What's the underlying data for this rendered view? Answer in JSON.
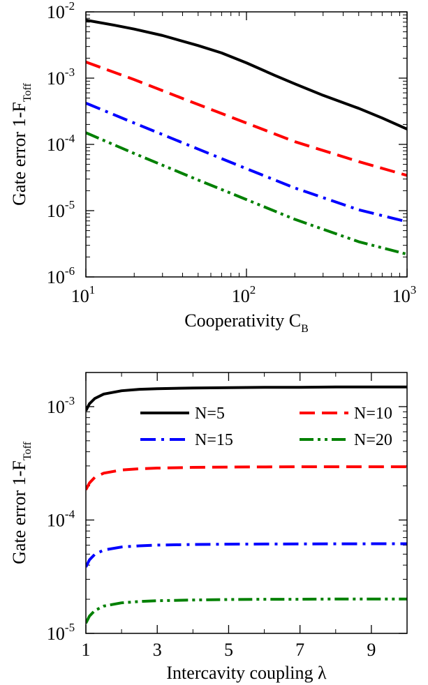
{
  "chart_data": [
    {
      "type": "line",
      "xlabel": "Cooperativity C",
      "xlabel_sub": "B",
      "ylabel": "Gate error 1-F",
      "ylabel_sub": "Toff",
      "xscale": "log",
      "yscale": "log",
      "xlim": [
        10,
        1000
      ],
      "ylim": [
        1e-06,
        0.01
      ],
      "x_ticks": [
        {
          "base": "10",
          "exp": "1",
          "value": 10
        },
        {
          "base": "10",
          "exp": "2",
          "value": 100
        },
        {
          "base": "10",
          "exp": "3",
          "value": 1000
        }
      ],
      "y_ticks": [
        {
          "base": "10",
          "exp": "-6",
          "value": 1e-06
        },
        {
          "base": "10",
          "exp": "-5",
          "value": 1e-05
        },
        {
          "base": "10",
          "exp": "-4",
          "value": 0.0001
        },
        {
          "base": "10",
          "exp": "-3",
          "value": 0.001
        },
        {
          "base": "10",
          "exp": "-2",
          "value": 0.01
        }
      ],
      "series": [
        {
          "color": "#000000",
          "dash": "solid",
          "x": [
            10,
            15,
            20,
            30,
            50,
            70,
            100,
            150,
            200,
            300,
            500,
            700,
            1000
          ],
          "y": [
            0.0075,
            0.0063,
            0.0055,
            0.0044,
            0.0031,
            0.0024,
            0.0017,
            0.0011,
            0.00082,
            0.00055,
            0.00035,
            0.00025,
            0.00017
          ]
        },
        {
          "color": "#ff0000",
          "dash": "dashed",
          "x": [
            10,
            20,
            50,
            100,
            200,
            500,
            1000
          ],
          "y": [
            0.00175,
            0.00095,
            0.0004,
            0.00021,
            0.00011,
            5.5e-05,
            3.4e-05
          ]
        },
        {
          "color": "#0000ff",
          "dash": "dashdot",
          "x": [
            10,
            20,
            50,
            100,
            200,
            500,
            1000
          ],
          "y": [
            0.00042,
            0.00021,
            8.5e-05,
            4.3e-05,
            2.2e-05,
            1.03e-05,
            6.8e-06
          ]
        },
        {
          "color": "#008000",
          "dash": "dashdotdot",
          "x": [
            10,
            20,
            50,
            100,
            200,
            500,
            1000
          ],
          "y": [
            0.00015,
            7.3e-05,
            2.9e-05,
            1.47e-05,
            7.4e-06,
            3.4e-06,
            2.2e-06
          ]
        }
      ]
    },
    {
      "type": "line",
      "xlabel": "Intercavity coupling λ",
      "ylabel": "Gate error 1-F",
      "ylabel_sub": "Toff",
      "xscale": "linear",
      "yscale": "log",
      "xlim": [
        1,
        10
      ],
      "ylim": [
        1e-05,
        0.002
      ],
      "x_ticks": [
        {
          "label": "1",
          "value": 1
        },
        {
          "label": "3",
          "value": 3
        },
        {
          "label": "5",
          "value": 5
        },
        {
          "label": "7",
          "value": 7
        },
        {
          "label": "9",
          "value": 9
        }
      ],
      "y_ticks": [
        {
          "base": "10",
          "exp": "-5",
          "value": 1e-05
        },
        {
          "base": "10",
          "exp": "-4",
          "value": 0.0001
        },
        {
          "base": "10",
          "exp": "-3",
          "value": 0.001
        }
      ],
      "legend_position": "top",
      "series": [
        {
          "name": "N=5",
          "color": "#000000",
          "dash": "solid",
          "x": [
            1,
            1.1,
            1.25,
            1.5,
            2,
            2.5,
            3,
            4,
            5,
            6,
            7,
            8,
            9,
            10
          ],
          "y": [
            0.00092,
            0.00106,
            0.00118,
            0.00129,
            0.00138,
            0.00142,
            0.00144,
            0.00146,
            0.00147,
            0.00148,
            0.00148,
            0.00149,
            0.00149,
            0.00149
          ]
        },
        {
          "name": "N=10",
          "color": "#ff0000",
          "dash": "dashed",
          "x": [
            1,
            1.1,
            1.25,
            1.5,
            2,
            2.5,
            3,
            4,
            5,
            6,
            7,
            8,
            9,
            10
          ],
          "y": [
            0.000185,
            0.000212,
            0.000238,
            0.000259,
            0.000276,
            0.000283,
            0.000287,
            0.000291,
            0.000293,
            0.000294,
            0.000295,
            0.000295,
            0.000295,
            0.000295
          ]
        },
        {
          "name": "N=15",
          "color": "#0000ff",
          "dash": "dashdot",
          "x": [
            1,
            1.1,
            1.25,
            1.5,
            2,
            2.5,
            3,
            4,
            5,
            6,
            7,
            8,
            9,
            10
          ],
          "y": [
            3.85e-05,
            4.45e-05,
            4.98e-05,
            5.43e-05,
            5.78e-05,
            5.92e-05,
            6.01e-05,
            6.08e-05,
            6.12e-05,
            6.14e-05,
            6.15e-05,
            6.16e-05,
            6.17e-05,
            6.17e-05
          ]
        },
        {
          "name": "N=20",
          "color": "#008000",
          "dash": "dashdotdot",
          "x": [
            1,
            1.1,
            1.25,
            1.5,
            2,
            2.5,
            3,
            4,
            5,
            6,
            7,
            8,
            9,
            10
          ],
          "y": [
            1.23e-05,
            1.42e-05,
            1.59e-05,
            1.74e-05,
            1.86e-05,
            1.91e-05,
            1.94e-05,
            1.97e-05,
            1.99e-05,
            2e-05,
            2e-05,
            2.01e-05,
            2.01e-05,
            2.01e-05
          ]
        }
      ]
    }
  ]
}
